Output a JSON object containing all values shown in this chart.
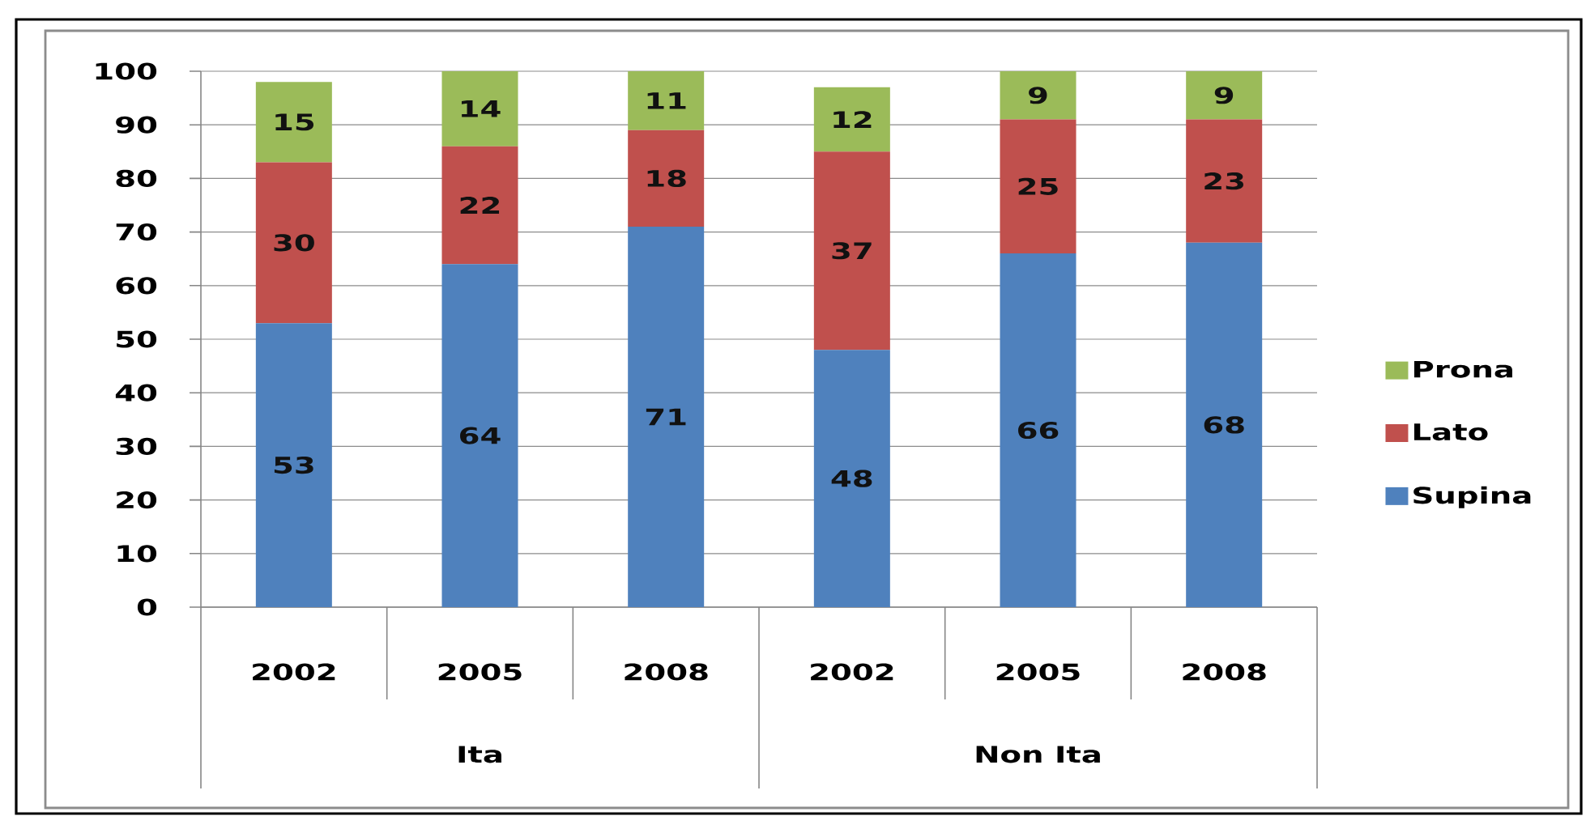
{
  "chart_data": {
    "type": "bar",
    "stacked": true,
    "categories": [
      "2002",
      "2005",
      "2008",
      "2002",
      "2005",
      "2008"
    ],
    "series": [
      {
        "name": "Supina",
        "color": "#4f81bd",
        "values": [
          53,
          64,
          71,
          48,
          66,
          68
        ]
      },
      {
        "name": "Lato",
        "color": "#c0504d",
        "values": [
          30,
          22,
          18,
          37,
          25,
          23
        ]
      },
      {
        "name": "Prona",
        "color": "#9bbb59",
        "values": [
          15,
          14,
          11,
          12,
          9,
          9
        ]
      }
    ],
    "ylim": [
      0,
      100
    ],
    "yticks": [
      0,
      10,
      20,
      30,
      40,
      50,
      60,
      70,
      80,
      90,
      100
    ],
    "grid": "y",
    "legend": "right",
    "data_labels": true,
    "annotations": [
      "Ita",
      "Non Ita"
    ]
  }
}
